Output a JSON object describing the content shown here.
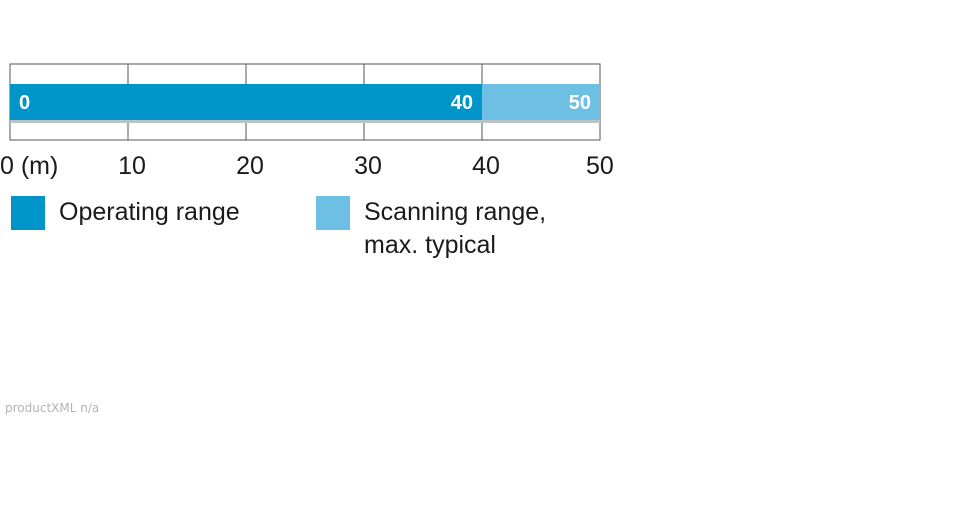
{
  "chart_data": {
    "type": "bar",
    "orientation": "horizontal",
    "x_unit_label": "0 (m)",
    "ticks": [
      0,
      10,
      20,
      30,
      40,
      50
    ],
    "tick_labels": [
      "0 (m)",
      "10",
      "20",
      "30",
      "40",
      "50"
    ],
    "xlim": [
      0,
      50
    ],
    "grid": true,
    "series": [
      {
        "name": "Operating range",
        "start": 0,
        "end": 40,
        "start_label": "0",
        "end_label": "40",
        "color": "#0095c8"
      },
      {
        "name": "Scanning range, max. typical",
        "start": 40,
        "end": 50,
        "end_label": "50",
        "color": "#6dbfe3"
      }
    ]
  },
  "legend": {
    "operating": {
      "label": "Operating range",
      "color": "#0095c8"
    },
    "scanning": {
      "label_line1": "Scanning range,",
      "label_line2": "max. typical",
      "color": "#6dbfe3"
    }
  },
  "footer": {
    "note": "productXML n/a"
  }
}
